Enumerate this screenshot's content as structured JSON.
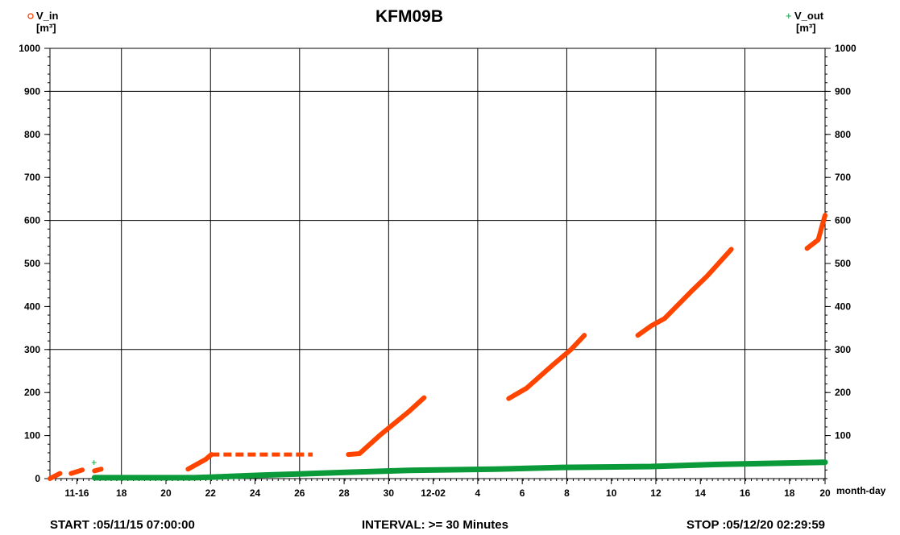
{
  "chart_data": {
    "type": "scatter",
    "title": "KFM09B",
    "left_axis": {
      "series_label": "V_in",
      "unit": "[m³]",
      "ylim": [
        0,
        1000
      ],
      "ticks": [
        "0",
        "100",
        "200",
        "300",
        "400",
        "500",
        "600",
        "700",
        "800",
        "900",
        "1000"
      ]
    },
    "right_axis": {
      "series_label": "V_out",
      "unit": "[m³]",
      "ylim": [
        0,
        1000
      ],
      "ticks": [
        "100",
        "200",
        "300",
        "400",
        "500",
        "600",
        "700",
        "800",
        "900",
        "1000"
      ]
    },
    "x_axis": {
      "label": "month-day",
      "range_days": [
        0,
        34.81
      ],
      "ticks": [
        {
          "day": 1.21,
          "label": "11-16"
        },
        {
          "day": 3.21,
          "label": "18"
        },
        {
          "day": 5.21,
          "label": "20"
        },
        {
          "day": 7.21,
          "label": "22"
        },
        {
          "day": 9.21,
          "label": "24"
        },
        {
          "day": 11.21,
          "label": "26"
        },
        {
          "day": 13.21,
          "label": "28"
        },
        {
          "day": 15.21,
          "label": "30"
        },
        {
          "day": 17.21,
          "label": "12-02"
        },
        {
          "day": 19.21,
          "label": "4"
        },
        {
          "day": 21.21,
          "label": "6"
        },
        {
          "day": 23.21,
          "label": "8"
        },
        {
          "day": 25.21,
          "label": "10"
        },
        {
          "day": 27.21,
          "label": "12"
        },
        {
          "day": 29.21,
          "label": "14"
        },
        {
          "day": 31.21,
          "label": "16"
        },
        {
          "day": 33.21,
          "label": "18"
        },
        {
          "day": 35.21,
          "label": "20"
        }
      ]
    },
    "grid": true,
    "series": [
      {
        "name": "V_in",
        "color": "#ff4400",
        "marker": "circle",
        "segments": [
          [
            [
              0.0,
              0
            ],
            [
              0.45,
              12
            ]
          ],
          [
            [
              0.95,
              12
            ],
            [
              1.45,
              20
            ]
          ],
          [
            [
              2.0,
              18
            ],
            [
              2.3,
              22
            ]
          ],
          [
            [
              6.2,
              22
            ],
            [
              7.0,
              45
            ],
            [
              7.25,
              56
            ],
            [
              11.8,
              56
            ]
          ],
          [
            [
              13.4,
              56
            ],
            [
              13.9,
              58
            ],
            [
              14.8,
              100
            ],
            [
              16.1,
              155
            ],
            [
              16.8,
              188
            ]
          ],
          [
            [
              20.6,
              186
            ],
            [
              21.4,
              210
            ],
            [
              22.6,
              265
            ],
            [
              23.4,
              300
            ],
            [
              24.0,
              333
            ]
          ],
          [
            [
              26.4,
              333
            ],
            [
              27.0,
              355
            ],
            [
              27.6,
              372
            ],
            [
              28.8,
              435
            ],
            [
              29.5,
              470
            ],
            [
              30.6,
              533
            ]
          ],
          [
            [
              34.0,
              535
            ],
            [
              34.5,
              555
            ],
            [
              34.81,
              612
            ]
          ]
        ]
      },
      {
        "name": "V_out",
        "color": "#0a9a3a",
        "marker": "plus",
        "segments": [
          [
            [
              2.0,
              2
            ],
            [
              6.5,
              2
            ],
            [
              9.5,
              8
            ],
            [
              13.0,
              14
            ],
            [
              16.0,
              19
            ],
            [
              20.0,
              22
            ],
            [
              23.0,
              26
            ],
            [
              27.0,
              28
            ],
            [
              30.0,
              33
            ],
            [
              34.81,
              38
            ]
          ]
        ],
        "points": [
          [
            2.0,
            37
          ]
        ]
      }
    ]
  },
  "footer": {
    "start": "START :05/11/15 07:00:00",
    "interval": "INTERVAL: >= 30 Minutes",
    "stop": "STOP :05/12/20 02:29:59"
  }
}
